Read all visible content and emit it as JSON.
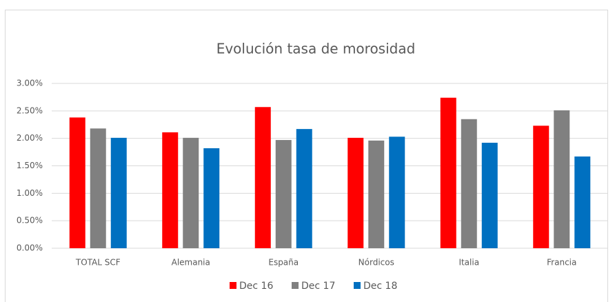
{
  "chart_data": {
    "type": "bar",
    "title": "Evolución tasa de morosidad",
    "categories": [
      "TOTAL SCF",
      "Alemania",
      "España",
      "Nórdicos",
      "Italia",
      "Francia"
    ],
    "series": [
      {
        "name": "Dec 16",
        "color": "#ff0000",
        "values": [
          2.38,
          2.11,
          2.57,
          2.01,
          2.74,
          2.23
        ]
      },
      {
        "name": "Dec 17",
        "color": "#808080",
        "values": [
          2.18,
          2.01,
          1.97,
          1.96,
          2.35,
          2.51
        ]
      },
      {
        "name": "Dec 18",
        "color": "#0070c0",
        "values": [
          2.01,
          1.82,
          2.17,
          2.03,
          1.92,
          1.67
        ]
      }
    ],
    "ylim": [
      0,
      3
    ],
    "yticks": [
      {
        "value": 0,
        "label": "0.00%"
      },
      {
        "value": 0.5,
        "label": "0.50%"
      },
      {
        "value": 1,
        "label": "1.00%"
      },
      {
        "value": 1.5,
        "label": "1.50%"
      },
      {
        "value": 2,
        "label": "2.00%"
      },
      {
        "value": 2.5,
        "label": "2.50%"
      },
      {
        "value": 3,
        "label": "3.00%"
      }
    ],
    "grid": true,
    "legend": "bottom"
  }
}
